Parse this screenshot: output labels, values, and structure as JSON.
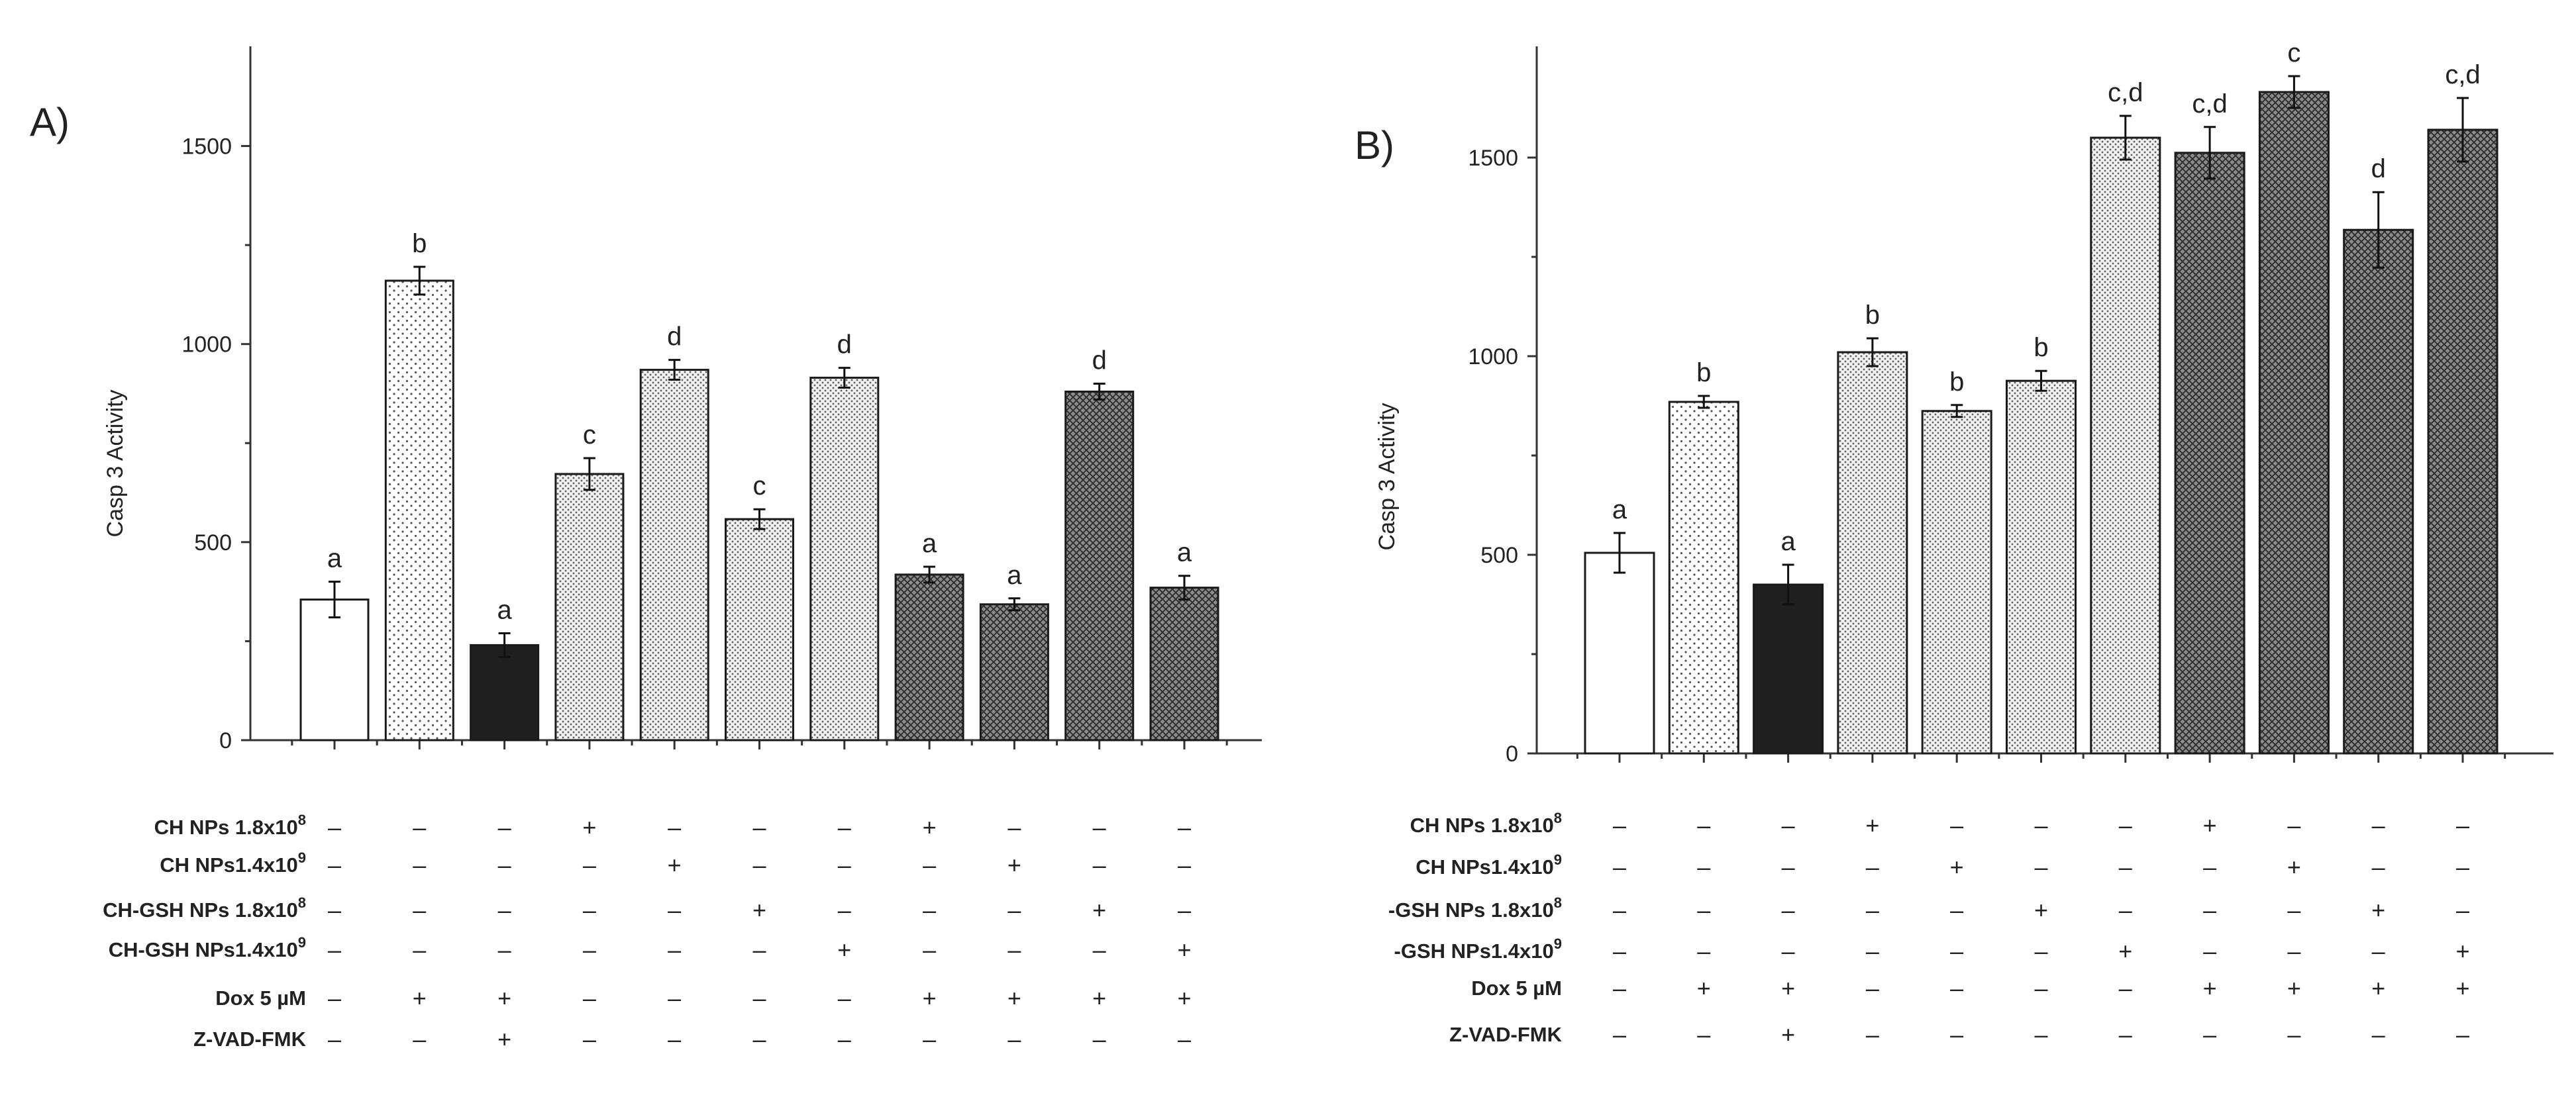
{
  "chart_data": [
    {
      "panel": "A)",
      "type": "bar",
      "ylabel": "Casp 3 Activity",
      "ylim": [
        0,
        1750
      ],
      "yticks": [
        0,
        500,
        1000,
        1500
      ],
      "values": [
        355,
        1160,
        240,
        672,
        935,
        558,
        915,
        418,
        343,
        880,
        385
      ],
      "errors": [
        45,
        35,
        30,
        40,
        25,
        25,
        25,
        20,
        15,
        20,
        30
      ],
      "letters": [
        "a",
        "b",
        "a",
        "c",
        "d",
        "c",
        "d",
        "a",
        "a",
        "d",
        "a"
      ],
      "patterns": [
        "white",
        "dots-sparse",
        "black",
        "dots-dense",
        "dots-dense",
        "dots-dense",
        "dots-dense",
        "cross-dark",
        "cross-dark",
        "cross-dark",
        "cross-dark"
      ],
      "rows": [
        {
          "label": "CH NPs 1.8x10",
          "sup": "8",
          "signs": [
            "–",
            "–",
            "–",
            "+",
            "–",
            "–",
            "–",
            "+",
            "–",
            "–",
            "–"
          ]
        },
        {
          "label": "CH NPs1.4x10",
          "sup": "9",
          "signs": [
            "–",
            "–",
            "–",
            "–",
            "+",
            "–",
            "–",
            "–",
            "+",
            "–",
            "–"
          ]
        },
        {
          "label": "CH-GSH NPs 1.8x10",
          "sup": "8",
          "signs": [
            "–",
            "–",
            "–",
            "–",
            "–",
            "+",
            "–",
            "–",
            "–",
            "+",
            "–"
          ]
        },
        {
          "label": "CH-GSH NPs1.4x10",
          "sup": "9",
          "signs": [
            "–",
            "–",
            "–",
            "–",
            "–",
            "–",
            "+",
            "–",
            "–",
            "–",
            "+"
          ]
        },
        {
          "label": "Dox 5 µM",
          "sup": "",
          "signs": [
            "–",
            "+",
            "+",
            "–",
            "–",
            "–",
            "–",
            "+",
            "+",
            "+",
            "+"
          ]
        },
        {
          "label": "Z-VAD-FMK",
          "sup": "",
          "signs": [
            "–",
            "–",
            "+",
            "–",
            "–",
            "–",
            "–",
            "–",
            "–",
            "–",
            "–"
          ]
        }
      ]
    },
    {
      "panel": "B)",
      "type": "bar",
      "ylabel": "Casp 3 Activity",
      "ylim": [
        0,
        1750
      ],
      "yticks": [
        0,
        500,
        1000,
        1500
      ],
      "values": [
        505,
        885,
        425,
        1010,
        862,
        938,
        1550,
        1512,
        1665,
        1318,
        1570
      ],
      "errors": [
        50,
        15,
        50,
        35,
        15,
        25,
        55,
        65,
        40,
        95,
        80
      ],
      "letters": [
        "a",
        "b",
        "a",
        "b",
        "b",
        "b",
        "c,d",
        "c,d",
        "c",
        "d",
        "c,d"
      ],
      "patterns": [
        "white",
        "dots-sparse",
        "black",
        "dots-dense",
        "dots-dense",
        "dots-dense",
        "dots-dense",
        "cross-dark",
        "cross-dark",
        "cross-dark",
        "cross-dark"
      ],
      "rows": [
        {
          "label": "CH NPs 1.8x10",
          "sup": "8",
          "signs": [
            "–",
            "–",
            "–",
            "+",
            "–",
            "–",
            "–",
            "+",
            "–",
            "–",
            "–"
          ]
        },
        {
          "label": "CH NPs1.4x10",
          "sup": "9",
          "signs": [
            "–",
            "–",
            "–",
            "–",
            "+",
            "–",
            "–",
            "–",
            "+",
            "–",
            "–"
          ]
        },
        {
          "label": "-GSH NPs 1.8x10",
          "sup": "8",
          "signs": [
            "–",
            "–",
            "–",
            "–",
            "–",
            "+",
            "–",
            "–",
            "–",
            "+",
            "–"
          ]
        },
        {
          "label": "-GSH NPs1.4x10",
          "sup": "9",
          "signs": [
            "–",
            "–",
            "–",
            "–",
            "–",
            "–",
            "+",
            "–",
            "–",
            "–",
            "+"
          ]
        },
        {
          "label": "Dox 5 µM",
          "sup": "",
          "signs": [
            "–",
            "+",
            "+",
            "–",
            "–",
            "–",
            "–",
            "+",
            "+",
            "+",
            "+"
          ]
        },
        {
          "label": "Z-VAD-FMK",
          "sup": "",
          "signs": [
            "–",
            "–",
            "+",
            "–",
            "–",
            "–",
            "–",
            "–",
            "–",
            "–",
            "–"
          ]
        }
      ]
    }
  ]
}
